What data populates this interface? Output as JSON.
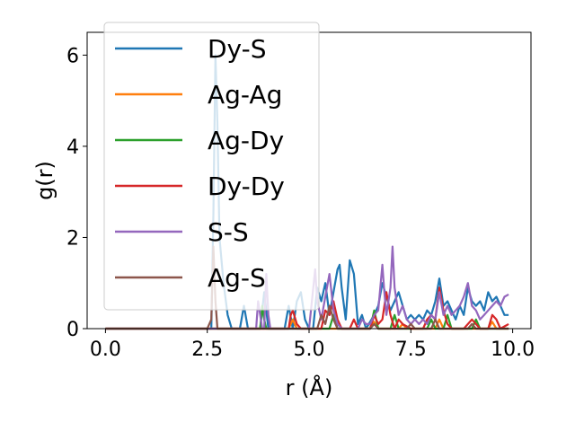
{
  "chart_data": {
    "type": "line",
    "title": "",
    "xlabel": "r (Å)",
    "ylabel": "g(r)",
    "xlim": [
      -0.45,
      10.45
    ],
    "ylim": [
      0,
      6.5
    ],
    "xticks": [
      0.0,
      2.5,
      5.0,
      7.5,
      10.0
    ],
    "xtick_labels": [
      "0.0",
      "2.5",
      "5.0",
      "7.5",
      "10.0"
    ],
    "yticks": [
      0,
      2,
      4,
      6
    ],
    "ytick_labels": [
      "0",
      "2",
      "4",
      "6"
    ],
    "grid": false,
    "legend_position": "top-left",
    "series": [
      {
        "name": "Dy-S",
        "color": "#1f77b4",
        "points": [
          [
            0,
            0
          ],
          [
            2.6,
            0
          ],
          [
            2.65,
            2.5
          ],
          [
            2.7,
            6.0
          ],
          [
            2.75,
            4.5
          ],
          [
            2.8,
            2.0
          ],
          [
            2.9,
            1.0
          ],
          [
            3.0,
            0.3
          ],
          [
            3.1,
            0
          ],
          [
            3.3,
            0
          ],
          [
            3.4,
            0.5
          ],
          [
            3.5,
            0
          ],
          [
            3.8,
            0
          ],
          [
            3.9,
            0.8
          ],
          [
            4.0,
            0
          ],
          [
            4.4,
            0
          ],
          [
            4.5,
            0.5
          ],
          [
            4.6,
            0
          ],
          [
            4.7,
            0.6
          ],
          [
            4.8,
            0.8
          ],
          [
            4.9,
            0.2
          ],
          [
            5.0,
            0
          ],
          [
            5.1,
            0
          ],
          [
            5.2,
            0.9
          ],
          [
            5.3,
            0.6
          ],
          [
            5.4,
            1.0
          ],
          [
            5.5,
            0.3
          ],
          [
            5.6,
            0.8
          ],
          [
            5.7,
            1.3
          ],
          [
            5.75,
            1.4
          ],
          [
            5.8,
            0.9
          ],
          [
            5.9,
            0.2
          ],
          [
            6.0,
            1.5
          ],
          [
            6.1,
            1.2
          ],
          [
            6.2,
            0.1
          ],
          [
            6.3,
            0.3
          ],
          [
            6.4,
            0.0
          ],
          [
            6.6,
            0.3
          ],
          [
            6.7,
            0.5
          ],
          [
            6.8,
            1.0
          ],
          [
            6.9,
            0.7
          ],
          [
            7.0,
            0.4
          ],
          [
            7.1,
            0.6
          ],
          [
            7.2,
            0.8
          ],
          [
            7.3,
            0.5
          ],
          [
            7.4,
            0.2
          ],
          [
            7.5,
            0.3
          ],
          [
            7.6,
            0.2
          ],
          [
            7.7,
            0.3
          ],
          [
            7.8,
            0.2
          ],
          [
            7.9,
            0.4
          ],
          [
            8.0,
            0.3
          ],
          [
            8.1,
            0.6
          ],
          [
            8.2,
            1.1
          ],
          [
            8.3,
            0.5
          ],
          [
            8.4,
            0.6
          ],
          [
            8.5,
            0.4
          ],
          [
            8.6,
            0.2
          ],
          [
            8.7,
            0.5
          ],
          [
            8.8,
            0.3
          ],
          [
            8.9,
            0.9
          ],
          [
            9.0,
            0.6
          ],
          [
            9.1,
            0.5
          ],
          [
            9.2,
            0.6
          ],
          [
            9.3,
            0.4
          ],
          [
            9.4,
            0.8
          ],
          [
            9.5,
            0.6
          ],
          [
            9.6,
            0.7
          ],
          [
            9.7,
            0.5
          ],
          [
            9.8,
            0.3
          ],
          [
            9.9,
            0.3
          ]
        ]
      },
      {
        "name": "Ag-Ag",
        "color": "#ff7f0e",
        "points": [
          [
            0,
            0
          ],
          [
            4.5,
            0
          ],
          [
            4.6,
            0.2
          ],
          [
            4.7,
            0
          ],
          [
            6.5,
            0
          ],
          [
            6.6,
            0.15
          ],
          [
            6.7,
            0
          ],
          [
            7.2,
            0
          ],
          [
            7.3,
            0.1
          ],
          [
            7.4,
            0
          ],
          [
            8.1,
            0
          ],
          [
            8.2,
            0.2
          ],
          [
            8.3,
            0
          ],
          [
            9.4,
            0
          ],
          [
            9.5,
            0.15
          ],
          [
            9.6,
            0
          ],
          [
            9.9,
            0
          ]
        ]
      },
      {
        "name": "Ag-Dy",
        "color": "#2ca02c",
        "points": [
          [
            0,
            0
          ],
          [
            3.8,
            0
          ],
          [
            3.85,
            0.5
          ],
          [
            3.9,
            0.2
          ],
          [
            3.95,
            0
          ],
          [
            5.5,
            0
          ],
          [
            5.6,
            0.3
          ],
          [
            5.7,
            0
          ],
          [
            6.5,
            0
          ],
          [
            6.6,
            0.4
          ],
          [
            6.7,
            0
          ],
          [
            7.0,
            0
          ],
          [
            7.1,
            0.3
          ],
          [
            7.2,
            0
          ],
          [
            7.9,
            0
          ],
          [
            8.0,
            0.2
          ],
          [
            8.1,
            0
          ],
          [
            8.3,
            0
          ],
          [
            8.4,
            0.3
          ],
          [
            8.5,
            0
          ],
          [
            9.0,
            0
          ],
          [
            9.1,
            0.2
          ],
          [
            9.2,
            0
          ],
          [
            9.9,
            0
          ]
        ]
      },
      {
        "name": "Dy-Dy",
        "color": "#d62728",
        "points": [
          [
            0,
            0
          ],
          [
            4.5,
            0
          ],
          [
            4.55,
            0.3
          ],
          [
            4.6,
            0.4
          ],
          [
            4.7,
            0.1
          ],
          [
            4.8,
            0
          ],
          [
            5.3,
            0
          ],
          [
            5.4,
            0.4
          ],
          [
            5.5,
            0.3
          ],
          [
            5.6,
            0.6
          ],
          [
            5.7,
            0.2
          ],
          [
            5.8,
            0
          ],
          [
            6.0,
            0
          ],
          [
            6.1,
            0.2
          ],
          [
            6.2,
            0
          ],
          [
            6.5,
            0
          ],
          [
            6.6,
            0.3
          ],
          [
            6.7,
            0.1
          ],
          [
            6.8,
            0.2
          ],
          [
            6.9,
            0.8
          ],
          [
            7.0,
            0.3
          ],
          [
            7.1,
            0
          ],
          [
            7.2,
            0.2
          ],
          [
            7.3,
            0.1
          ],
          [
            7.5,
            0
          ],
          [
            7.8,
            0
          ],
          [
            7.9,
            0.2
          ],
          [
            8.0,
            0.3
          ],
          [
            8.1,
            0.2
          ],
          [
            8.2,
            0.9
          ],
          [
            8.3,
            0.4
          ],
          [
            8.4,
            0.1
          ],
          [
            8.5,
            0
          ],
          [
            8.8,
            0
          ],
          [
            8.9,
            0.1
          ],
          [
            9.0,
            0.2
          ],
          [
            9.1,
            0.1
          ],
          [
            9.2,
            0
          ],
          [
            9.4,
            0
          ],
          [
            9.5,
            0.3
          ],
          [
            9.6,
            0.2
          ],
          [
            9.7,
            0
          ],
          [
            9.8,
            0.05
          ],
          [
            9.9,
            0.1
          ]
        ]
      },
      {
        "name": "S-S",
        "color": "#9467bd",
        "points": [
          [
            0,
            0
          ],
          [
            3.7,
            0
          ],
          [
            3.75,
            0.6
          ],
          [
            3.8,
            0.3
          ],
          [
            3.85,
            0
          ],
          [
            3.9,
            0
          ],
          [
            3.95,
            1.2
          ],
          [
            4.0,
            0.3
          ],
          [
            4.05,
            0
          ],
          [
            5.0,
            0
          ],
          [
            5.15,
            1.3
          ],
          [
            5.2,
            0.6
          ],
          [
            5.3,
            0.2
          ],
          [
            5.4,
            0.7
          ],
          [
            5.5,
            1.2
          ],
          [
            5.6,
            0.4
          ],
          [
            5.7,
            0.1
          ],
          [
            5.8,
            0
          ],
          [
            6.2,
            0
          ],
          [
            6.3,
            0.2
          ],
          [
            6.4,
            0.1
          ],
          [
            6.5,
            0.1
          ],
          [
            6.6,
            0.3
          ],
          [
            6.7,
            0.4
          ],
          [
            6.8,
            1.4
          ],
          [
            6.85,
            0.8
          ],
          [
            6.9,
            0.3
          ],
          [
            7.0,
            0.9
          ],
          [
            7.05,
            1.8
          ],
          [
            7.1,
            0.9
          ],
          [
            7.2,
            0.3
          ],
          [
            7.3,
            0.5
          ],
          [
            7.4,
            0.2
          ],
          [
            7.5,
            0.1
          ],
          [
            7.6,
            0.2
          ],
          [
            7.7,
            0.1
          ],
          [
            7.8,
            0.2
          ],
          [
            7.9,
            0.1
          ],
          [
            8.0,
            0.3
          ],
          [
            8.1,
            0.2
          ],
          [
            8.2,
            0.8
          ],
          [
            8.3,
            0.3
          ],
          [
            8.4,
            0.5
          ],
          [
            8.5,
            0.3
          ],
          [
            8.6,
            0.4
          ],
          [
            8.7,
            0.5
          ],
          [
            8.8,
            0.7
          ],
          [
            8.9,
            1.0
          ],
          [
            9.0,
            0.5
          ],
          [
            9.1,
            0.4
          ],
          [
            9.2,
            0.2
          ],
          [
            9.3,
            0.3
          ],
          [
            9.4,
            0.4
          ],
          [
            9.5,
            0.5
          ],
          [
            9.6,
            0.6
          ],
          [
            9.7,
            0.5
          ],
          [
            9.8,
            0.7
          ],
          [
            9.9,
            0.75
          ]
        ]
      },
      {
        "name": "Ag-S",
        "color": "#8c564b",
        "points": [
          [
            0,
            0
          ],
          [
            2.5,
            0
          ],
          [
            2.6,
            0.2
          ],
          [
            2.65,
            1.8
          ],
          [
            2.7,
            0.6
          ],
          [
            2.75,
            0
          ],
          [
            4.5,
            0
          ],
          [
            5.2,
            0
          ],
          [
            5.3,
            0.3
          ],
          [
            5.4,
            0.1
          ],
          [
            5.5,
            0.5
          ],
          [
            5.6,
            0.2
          ],
          [
            5.7,
            0
          ],
          [
            6.5,
            0
          ],
          [
            6.6,
            0.1
          ],
          [
            6.7,
            0
          ],
          [
            7.4,
            0
          ],
          [
            7.5,
            0.1
          ],
          [
            7.6,
            0
          ],
          [
            8.0,
            0
          ],
          [
            8.1,
            0.2
          ],
          [
            8.2,
            0
          ],
          [
            8.9,
            0
          ],
          [
            9.0,
            0.1
          ],
          [
            9.1,
            0
          ],
          [
            9.9,
            0
          ]
        ]
      }
    ]
  }
}
